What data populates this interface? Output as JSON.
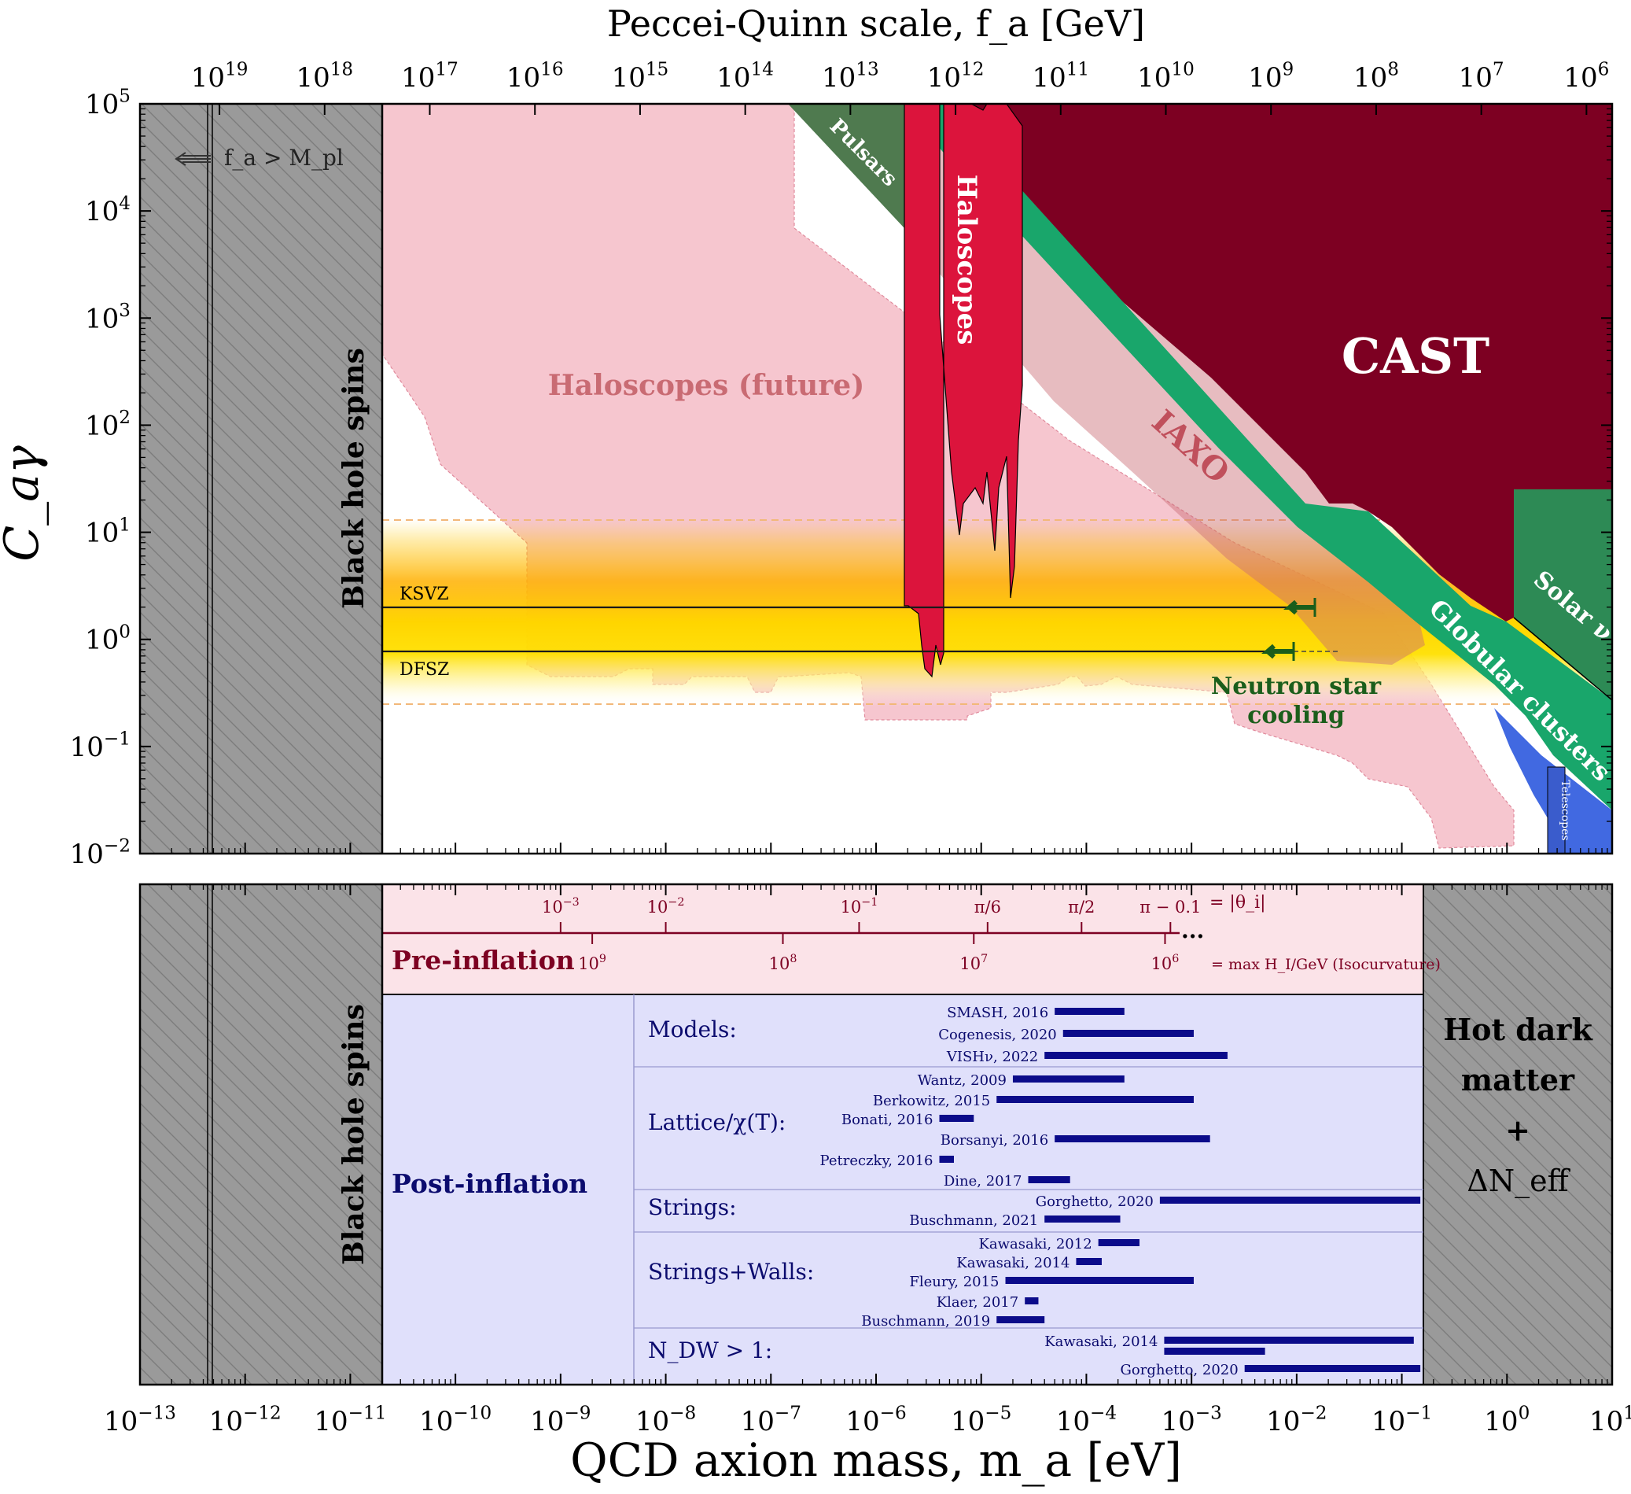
{
  "chart_data": [
    {
      "type": "area",
      "top_axis_title": "Peccei-Quinn scale, f_a [GeV]",
      "ylabel": "C_aγ",
      "xlabel": "",
      "x_scale": "log",
      "y_scale": "log",
      "xlim_ma_eV": [
        1e-13,
        10
      ],
      "ylim": [
        0.01,
        100000
      ],
      "top_ticks_GeV": [
        {
          "label": "10",
          "exp": "19",
          "value": 1e+19
        },
        {
          "label": "10",
          "exp": "18",
          "value": 1e+18
        },
        {
          "label": "10",
          "exp": "17",
          "value": 1e+17
        },
        {
          "label": "10",
          "exp": "16",
          "value": 1e+16
        },
        {
          "label": "10",
          "exp": "15",
          "value": 1000000000000000.0
        },
        {
          "label": "10",
          "exp": "14",
          "value": 100000000000000.0
        },
        {
          "label": "10",
          "exp": "13",
          "value": 10000000000000.0
        },
        {
          "label": "10",
          "exp": "12",
          "value": 1000000000000.0
        },
        {
          "label": "10",
          "exp": "11",
          "value": 100000000000.0
        },
        {
          "label": "10",
          "exp": "10",
          "value": 10000000000.0
        },
        {
          "label": "10",
          "exp": "9",
          "value": 1000000000.0
        },
        {
          "label": "10",
          "exp": "8",
          "value": 100000000.0
        },
        {
          "label": "10",
          "exp": "7",
          "value": 10000000.0
        },
        {
          "label": "10",
          "exp": "6",
          "value": 1000000.0
        }
      ],
      "y_ticks": [
        {
          "label": "10",
          "exp": "5",
          "value": 100000.0
        },
        {
          "label": "10",
          "exp": "4",
          "value": 10000.0
        },
        {
          "label": "10",
          "exp": "3",
          "value": 1000.0
        },
        {
          "label": "10",
          "exp": "2",
          "value": 100.0
        },
        {
          "label": "10",
          "exp": "1",
          "value": 10
        },
        {
          "label": "10",
          "exp": "0",
          "value": 1
        },
        {
          "label": "10",
          "exp": "−1",
          "value": 0.1
        },
        {
          "label": "10",
          "exp": "−2",
          "value": 0.01
        }
      ],
      "models": [
        {
          "name": "KSVZ",
          "C_ag": 1.92,
          "ma_range_eV": [
            2e-11,
            0.015
          ]
        },
        {
          "name": "DFSZ",
          "C_ag": 0.75,
          "ma_range_eV": [
            2e-11,
            0.01
          ]
        }
      ],
      "band_C_ag": [
        0.25,
        12.7
      ],
      "excluded_regions": [
        {
          "name": "Black hole spins",
          "ma_range_eV": [
            1e-13,
            2e-11
          ],
          "color": "#999999"
        },
        {
          "name": "CAST",
          "color": "#7d0022"
        },
        {
          "name": "Haloscopes",
          "ma_range_eV": [
            2.7e-06,
            4.2e-05
          ],
          "color": "#dc143c"
        },
        {
          "name": "Pulsars",
          "color": "#4f7a4f"
        },
        {
          "name": "Globular clusters",
          "color": "#19a66b"
        },
        {
          "name": "Solar ν",
          "color": "#2d8a55"
        },
        {
          "name": "Telescopes",
          "ma_range_eV": [
            3,
            10
          ],
          "color": "#4169e1"
        },
        {
          "name": "Neutron star cooling",
          "color": "#1b5e1b"
        }
      ],
      "projections": [
        {
          "name": "Haloscopes (future)",
          "color": "#f4b6c2"
        },
        {
          "name": "IAXO",
          "color": "#d9a0a8"
        }
      ],
      "annotations": {
        "fa_above_mpl": "f_a > M_pl",
        "black_hole_spins": "Black hole spins",
        "cast": "CAST",
        "haloscopes": "Haloscopes",
        "pulsars": "Pulsars",
        "haloscopes_future": "Haloscopes (future)",
        "iaxo": "IAXO",
        "solar_nu": "Solar ν",
        "globular_clusters": "Globular clusters",
        "telescopes": "Telescopes",
        "ns_cooling_1": "Neutron star",
        "ns_cooling_2": "cooling",
        "ksvz": "KSVZ",
        "dfsz": "DFSZ"
      }
    },
    {
      "type": "bar",
      "xlabel": "QCD axion mass, m_a [eV]",
      "x_scale": "log",
      "xlim": [
        1e-13,
        10
      ],
      "x_ticks": [
        {
          "label": "10",
          "exp": "−13",
          "value": 1e-13
        },
        {
          "label": "10",
          "exp": "−12",
          "value": 1e-12
        },
        {
          "label": "10",
          "exp": "−11",
          "value": 1e-11
        },
        {
          "label": "10",
          "exp": "−10",
          "value": 1e-10
        },
        {
          "label": "10",
          "exp": "−9",
          "value": 1e-09
        },
        {
          "label": "10",
          "exp": "−8",
          "value": 1e-08
        },
        {
          "label": "10",
          "exp": "−7",
          "value": 1e-07
        },
        {
          "label": "10",
          "exp": "−6",
          "value": 1e-06
        },
        {
          "label": "10",
          "exp": "−5",
          "value": 1e-05
        },
        {
          "label": "10",
          "exp": "−4",
          "value": 0.0001
        },
        {
          "label": "10",
          "exp": "−3",
          "value": 0.001
        },
        {
          "label": "10",
          "exp": "−2",
          "value": 0.01
        },
        {
          "label": "10",
          "exp": "−1",
          "value": 0.1
        },
        {
          "label": "10",
          "exp": "0",
          "value": 1
        },
        {
          "label": "10",
          "exp": "1",
          "value": 10
        }
      ],
      "left_label": "Black hole spins",
      "right_label": [
        "Hot dark",
        "matter",
        "+",
        "ΔN_eff"
      ],
      "pre_inflation": {
        "title": "Pre-inflation",
        "theta_ticks": [
          {
            "label": "10",
            "exp": "−3",
            "ma": 1e-09
          },
          {
            "label": "10",
            "exp": "−2",
            "ma": 1e-08
          },
          {
            "label": "10",
            "exp": "−1",
            "ma": 6.9e-07
          },
          {
            "label": "π/6",
            "exp": "",
            "ma": 1.15e-05
          },
          {
            "label": "π/2",
            "exp": "",
            "ma": 9e-05
          },
          {
            "label": "π − 0.1",
            "exp": "",
            "ma": 0.00063
          }
        ],
        "theta_note": "= |θ_i|",
        "hi_ticks": [
          {
            "label": "10",
            "exp": "9",
            "ma": 2e-09
          },
          {
            "label": "10",
            "exp": "8",
            "ma": 1.3e-07
          },
          {
            "label": "10",
            "exp": "7",
            "ma": 8.5e-06
          },
          {
            "label": "10",
            "exp": "6",
            "ma": 0.00056
          }
        ],
        "hi_note": "= max H_I/GeV (Isocurvature)",
        "ellipsis": "..."
      },
      "post_inflation": {
        "title": "Post-inflation",
        "categories": [
          "Models:",
          "Lattice/χ(T):",
          "Strings:",
          "Strings+Walls:",
          "N_DW > 1:"
        ],
        "entries": [
          {
            "category": "Models:",
            "label": "SMASH, 2016",
            "ma_range_eV": [
              5e-05,
              0.00023
            ]
          },
          {
            "category": "Models:",
            "label": "Cogenesis, 2020",
            "ma_range_eV": [
              6e-05,
              0.00105
            ]
          },
          {
            "category": "Models:",
            "label": "VISHν, 2022",
            "ma_range_eV": [
              4e-05,
              0.0022
            ]
          },
          {
            "category": "Lattice/χ(T):",
            "label": "Wantz, 2009",
            "ma_range_eV": [
              2e-05,
              0.00023
            ]
          },
          {
            "category": "Lattice/χ(T):",
            "label": "Berkowitz, 2015",
            "ma_range_eV": [
              1.4e-05,
              0.00105
            ]
          },
          {
            "category": "Lattice/χ(T):",
            "label": "Bonati, 2016",
            "ma_range_eV": [
              4e-06,
              8.5e-06
            ]
          },
          {
            "category": "Lattice/χ(T):",
            "label": "Borsanyi, 2016",
            "ma_range_eV": [
              5e-05,
              0.0015
            ]
          },
          {
            "category": "Lattice/χ(T):",
            "label": "Petreczky, 2016",
            "ma_range_eV": [
              4e-06,
              5.5e-06
            ]
          },
          {
            "category": "Lattice/χ(T):",
            "label": "Dine, 2017",
            "ma_range_eV": [
              2.8e-05,
              7e-05
            ]
          },
          {
            "category": "Strings:",
            "label": "Gorghetto, 2020",
            "ma_range_eV": [
              0.0005,
              0.15
            ]
          },
          {
            "category": "Strings:",
            "label": "Buschmann, 2021",
            "ma_range_eV": [
              4e-05,
              0.00021
            ]
          },
          {
            "category": "Strings+Walls:",
            "label": "Kawasaki, 2012",
            "ma_range_eV": [
              0.00013,
              0.00032
            ]
          },
          {
            "category": "Strings+Walls:",
            "label": "Kawasaki, 2014",
            "ma_range_eV": [
              8e-05,
              0.00014
            ]
          },
          {
            "category": "Strings+Walls:",
            "label": "Fleury, 2015",
            "ma_range_eV": [
              1.7e-05,
              0.00105
            ]
          },
          {
            "category": "Strings+Walls:",
            "label": "Klaer, 2017",
            "ma_range_eV": [
              2.6e-05,
              3.5e-05
            ]
          },
          {
            "category": "Strings+Walls:",
            "label": "Buschmann, 2019",
            "ma_range_eV": [
              1.4e-05,
              4e-05
            ]
          },
          {
            "category": "N_DW > 1:",
            "label": "Kawasaki, 2014",
            "ma_range_eV": [
              0.00055,
              0.13
            ]
          },
          {
            "category": "N_DW > 1:",
            "label": "",
            "ma_range_eV": [
              0.00055,
              0.005
            ]
          },
          {
            "category": "N_DW > 1:",
            "label": "Gorghetto, 2020",
            "ma_range_eV": [
              0.0032,
              0.15
            ]
          }
        ]
      }
    }
  ]
}
